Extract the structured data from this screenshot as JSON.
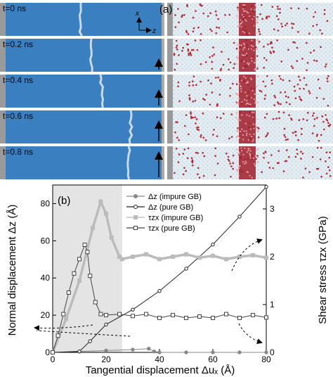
{
  "figure": {
    "panel_a": {
      "label": "(a)",
      "axis_x": "x",
      "axis_z": "z",
      "time_labels": [
        "t=0 ns",
        "t=0.2 ns",
        "t=0.4 ns",
        "t=0.6 ns",
        "t=0.8 ns"
      ],
      "colors": {
        "blue": "#3a7fc0",
        "atoms_light": "#dde8ef",
        "atoms_red": "#b02834",
        "gb_dark": "#a01c2a"
      }
    },
    "panel_b": {
      "label": "(b)",
      "xlabel": "Tangential displacement Δuₓ (Å)",
      "ylabel_left": "Normal displacement Δz (Å)",
      "ylabel_right": "Shear stress τzx (GPa)",
      "legend": [
        "Δz (impure GB)",
        "Δz (pure GB)",
        "τzx (impure GB)",
        "τzx (pure GB)"
      ]
    }
  },
  "chart_data": {
    "type": "line",
    "title": "",
    "xlabel": "Tangential displacement Δuₓ (Å)",
    "ylabel": "Normal displacement Δz (Å)",
    "y2label": "Shear stress τzx (GPa)",
    "xlim": [
      0,
      80
    ],
    "ylim": [
      0,
      90
    ],
    "y2lim": [
      0,
      3.5
    ],
    "xticks": [
      0,
      20,
      40,
      60,
      80
    ],
    "yticks": [
      0,
      20,
      40,
      60,
      80
    ],
    "y2ticks": [
      0,
      1,
      2,
      3
    ],
    "shaded_region_x": [
      0,
      26
    ],
    "series": [
      {
        "name": "Δz (impure GB)",
        "axis": "left",
        "color": "#888888",
        "marker": "filled-circle",
        "x": [
          0,
          10,
          20,
          30,
          36,
          38,
          40,
          50,
          60,
          70,
          80
        ],
        "y": [
          0,
          0.5,
          1,
          1.5,
          2,
          0.5,
          0,
          0,
          0,
          0,
          0
        ]
      },
      {
        "name": "Δz (pure GB)",
        "axis": "left",
        "color": "#222222",
        "marker": "open-circle",
        "x": [
          0,
          10,
          14,
          20,
          30,
          40,
          50,
          60,
          70,
          80
        ],
        "y": [
          0,
          0.5,
          6,
          15,
          23,
          33,
          45,
          58,
          73,
          89
        ]
      },
      {
        "name": "τzx (impure GB)",
        "axis": "right",
        "color": "#bbbbbb",
        "marker": "filled-square",
        "x": [
          0,
          5,
          10,
          15,
          18,
          20,
          22,
          25,
          26,
          30,
          35,
          40,
          45,
          50,
          55,
          60,
          65,
          70,
          75,
          80
        ],
        "y": [
          0,
          0.7,
          1.5,
          2.6,
          3.15,
          2.9,
          2.4,
          2.0,
          1.95,
          2.0,
          2.05,
          1.95,
          2.0,
          2.05,
          1.98,
          2.02,
          1.95,
          2.0,
          2.03,
          1.98
        ]
      },
      {
        "name": "τzx (pure GB)",
        "axis": "right",
        "color": "#444444",
        "marker": "open-square",
        "x": [
          0,
          2,
          4,
          6,
          8,
          10,
          12,
          13,
          14,
          16,
          18,
          20,
          25,
          30,
          35,
          40,
          45,
          50,
          55,
          60,
          65,
          70,
          75,
          80
        ],
        "y": [
          0,
          0.35,
          0.8,
          1.25,
          1.65,
          1.95,
          2.25,
          2.1,
          1.6,
          1.05,
          0.8,
          0.78,
          0.8,
          0.76,
          0.8,
          0.72,
          0.78,
          0.72,
          0.75,
          0.72,
          0.8,
          0.72,
          0.78,
          0.73
        ]
      }
    ]
  }
}
